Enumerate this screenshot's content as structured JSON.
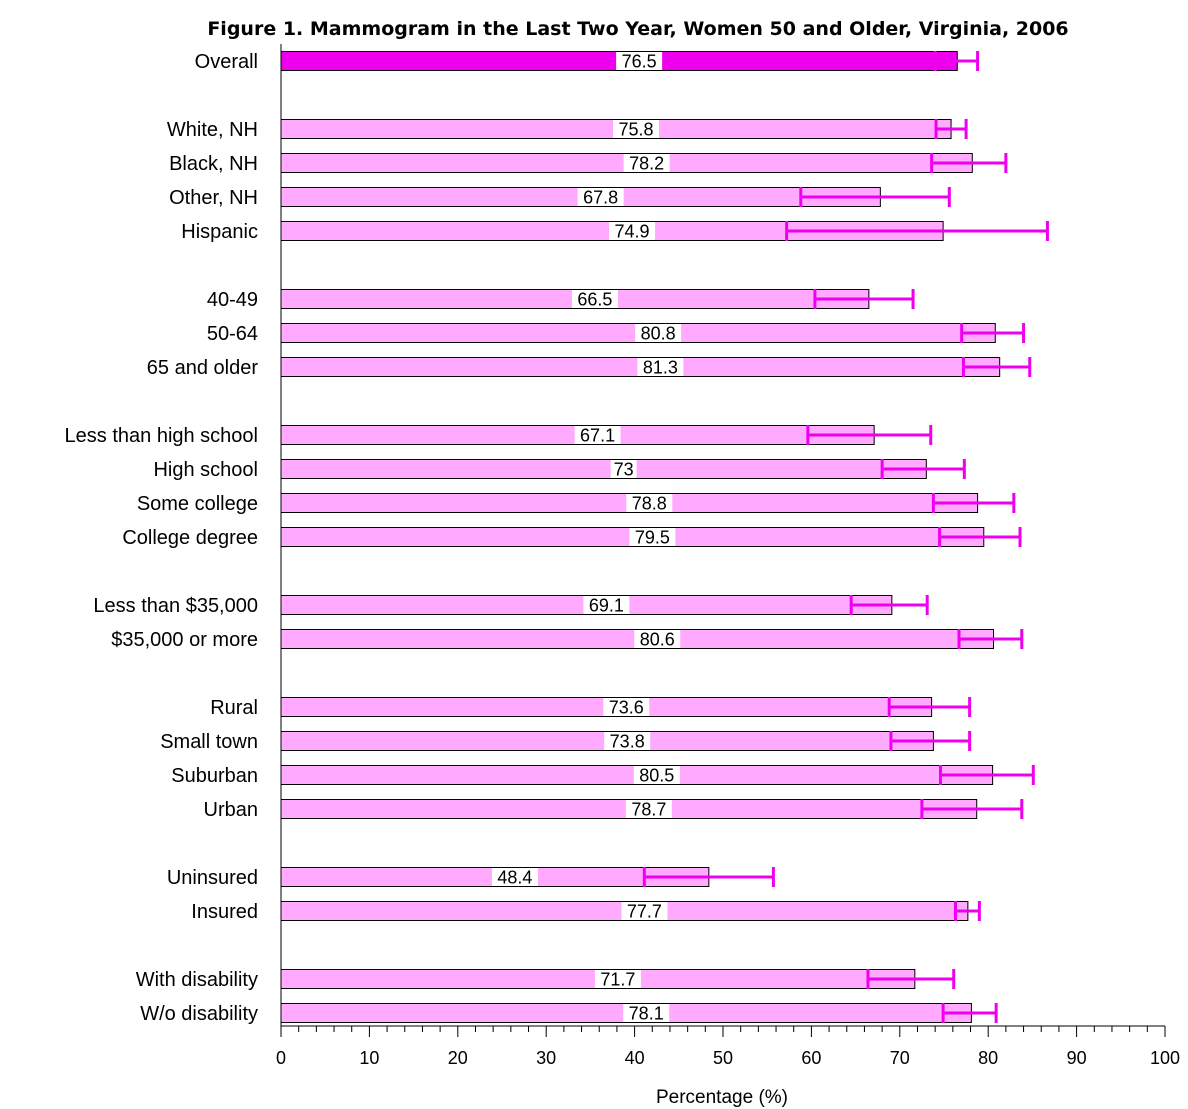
{
  "chart_data": {
    "type": "bar",
    "orientation": "horizontal",
    "title": "Figure 1. Mammogram in the Last Two Year, Women 50 and Older, Virginia, 2006",
    "xlabel": "Percentage (%)",
    "ylabel": "",
    "xlim": [
      0,
      100
    ],
    "xticks": [
      "0",
      "10",
      "20",
      "30",
      "40",
      "50",
      "60",
      "70",
      "80",
      "90",
      "100"
    ],
    "grid": false,
    "error_bars": true,
    "colors": {
      "overall_bar": "#ee00ee",
      "bar": "#ffaaff",
      "error": "#ee00ee",
      "border": "#000000"
    },
    "categories": [
      {
        "label": "Overall",
        "value": 76.5,
        "value_label": "76.5",
        "ci": [
          74.0,
          78.8
        ],
        "group": 0,
        "highlight": true
      },
      {
        "label": "White, NH",
        "value": 75.8,
        "value_label": "75.8",
        "ci": [
          74.1,
          77.5
        ],
        "group": 1
      },
      {
        "label": "Black, NH",
        "value": 78.2,
        "value_label": "78.2",
        "ci": [
          73.6,
          82.0
        ],
        "group": 1
      },
      {
        "label": "Other, NH",
        "value": 67.8,
        "value_label": "67.8",
        "ci": [
          58.8,
          75.6
        ],
        "group": 1
      },
      {
        "label": "Hispanic",
        "value": 74.9,
        "value_label": "74.9",
        "ci": [
          57.2,
          86.7
        ],
        "group": 1
      },
      {
        "label": "40-49",
        "value": 66.5,
        "value_label": "66.5",
        "ci": [
          60.4,
          71.5
        ],
        "group": 2
      },
      {
        "label": "50-64",
        "value": 80.8,
        "value_label": "80.8",
        "ci": [
          77.0,
          84.0
        ],
        "group": 2
      },
      {
        "label": "65 and older",
        "value": 81.3,
        "value_label": "81.3",
        "ci": [
          77.2,
          84.7
        ],
        "group": 2
      },
      {
        "label": "Less than high school",
        "value": 67.1,
        "value_label": "67.1",
        "ci": [
          59.6,
          73.5
        ],
        "group": 3
      },
      {
        "label": "High school",
        "value": 73,
        "value_label": "73",
        "ci": [
          68.0,
          77.3
        ],
        "group": 3
      },
      {
        "label": "Some college",
        "value": 78.8,
        "value_label": "78.8",
        "ci": [
          73.8,
          82.9
        ],
        "group": 3
      },
      {
        "label": "College degree",
        "value": 79.5,
        "value_label": "79.5",
        "ci": [
          74.5,
          83.6
        ],
        "group": 3
      },
      {
        "label": "Less than $35,000",
        "value": 69.1,
        "value_label": "69.1",
        "ci": [
          64.5,
          73.1
        ],
        "group": 4
      },
      {
        "label": "$35,000 or more",
        "value": 80.6,
        "value_label": "80.6",
        "ci": [
          76.7,
          83.8
        ],
        "group": 4
      },
      {
        "label": "Rural",
        "value": 73.6,
        "value_label": "73.6",
        "ci": [
          68.8,
          77.9
        ],
        "group": 5
      },
      {
        "label": "Small town",
        "value": 73.8,
        "value_label": "73.8",
        "ci": [
          69.0,
          77.9
        ],
        "group": 5
      },
      {
        "label": "Suburban",
        "value": 80.5,
        "value_label": "80.5",
        "ci": [
          74.6,
          85.1
        ],
        "group": 5
      },
      {
        "label": "Urban",
        "value": 78.7,
        "value_label": "78.7",
        "ci": [
          72.5,
          83.8
        ],
        "group": 5
      },
      {
        "label": "Uninsured",
        "value": 48.4,
        "value_label": "48.4",
        "ci": [
          41.1,
          55.7
        ],
        "group": 6
      },
      {
        "label": "Insured",
        "value": 77.7,
        "value_label": "77.7",
        "ci": [
          76.3,
          79.0
        ],
        "group": 6
      },
      {
        "label": "With disability",
        "value": 71.7,
        "value_label": "71.7",
        "ci": [
          66.4,
          76.1
        ],
        "group": 7
      },
      {
        "label": "W/o disability",
        "value": 78.1,
        "value_label": "78.1",
        "ci": [
          74.9,
          80.9
        ],
        "group": 7
      }
    ]
  }
}
